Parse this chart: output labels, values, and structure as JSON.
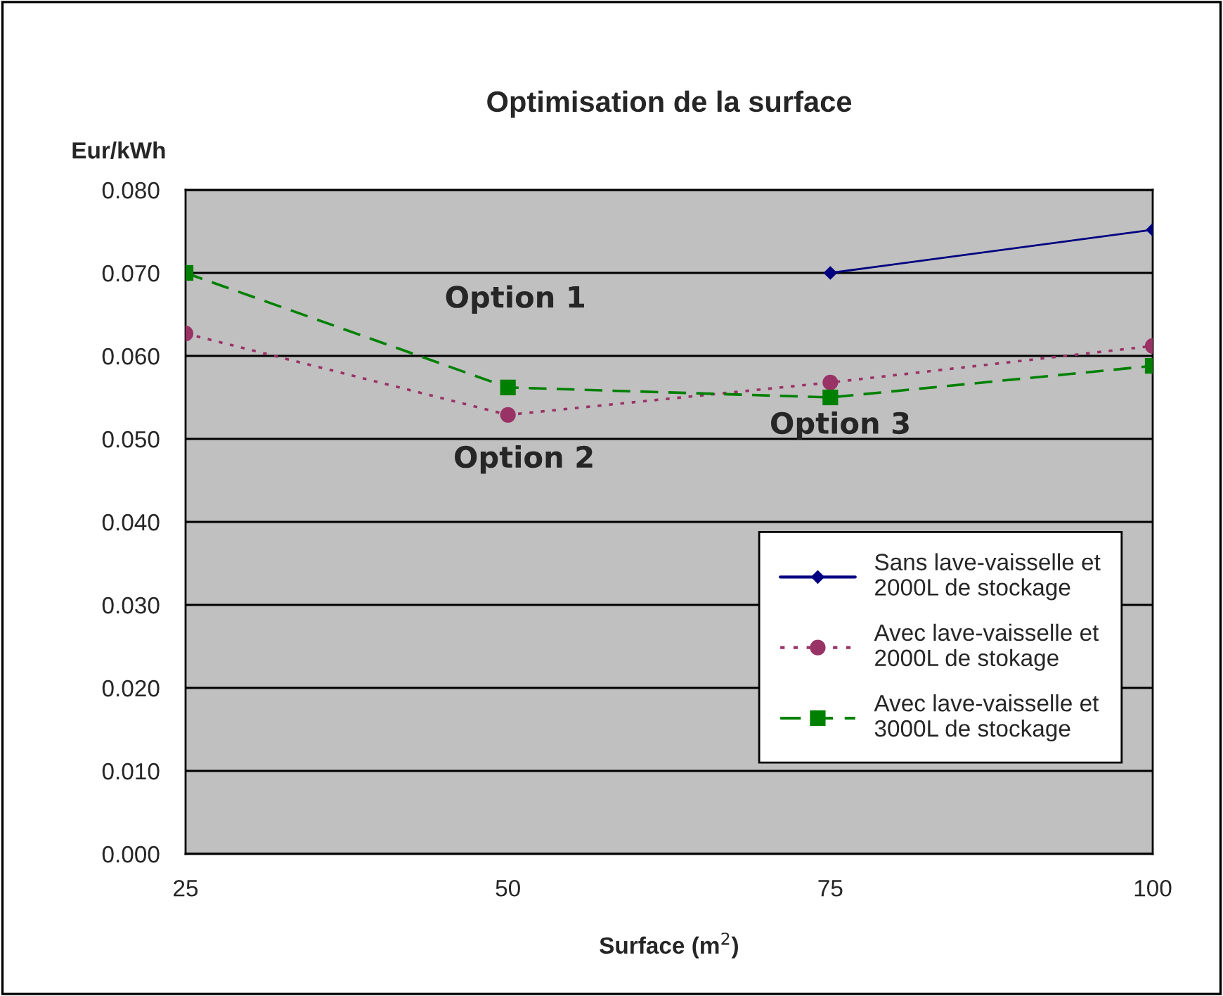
{
  "chart_data": {
    "type": "line",
    "title": "Optimisation de la surface",
    "xlabel": "Surface (m$^{2}$)",
    "ylabel": "Eur/kWh",
    "x": [
      25,
      50,
      75,
      100
    ],
    "xlim": [
      25,
      100
    ],
    "xticks": [
      25,
      50,
      75,
      100
    ],
    "ylim": [
      0,
      0.08
    ],
    "yticks": [
      {
        "value": 0,
        "label": "0.000"
      },
      {
        "value": 0.01,
        "label": "0.010"
      },
      {
        "value": 0.02,
        "label": "0.020"
      },
      {
        "value": 0.03,
        "label": "0.030"
      },
      {
        "value": 0.04,
        "label": "0.040"
      },
      {
        "value": 0.05,
        "label": "0.050"
      },
      {
        "value": 0.06,
        "label": "0.060"
      },
      {
        "value": 0.07,
        "label": "0.070"
      },
      {
        "value": 0.08,
        "label": "0.080"
      }
    ],
    "grid": "y",
    "legend": "bottom right",
    "series": [
      {
        "name": "Sans lave-vaisselle et\n2000L de stockage",
        "color": "#000080",
        "marker": "diamond",
        "line_style": "solid",
        "values": [
          null,
          null,
          0.07,
          0.0752
        ]
      },
      {
        "name": "Avec lave-vaisselle et\n2000L de stokage",
        "color": "#993366",
        "marker": "circle",
        "line_style": "dotted",
        "values": [
          0.0627,
          0.0529,
          0.0568,
          0.0612
        ]
      },
      {
        "name": "Avec lave-vaisselle et\n3000L de stockage",
        "color": "#008000",
        "marker": "square",
        "line_style": "dashed",
        "values": [
          0.07,
          0.0562,
          0.055,
          0.0588
        ]
      }
    ],
    "annotations": [
      "Option 1",
      "Option 2",
      "Option 3"
    ]
  }
}
